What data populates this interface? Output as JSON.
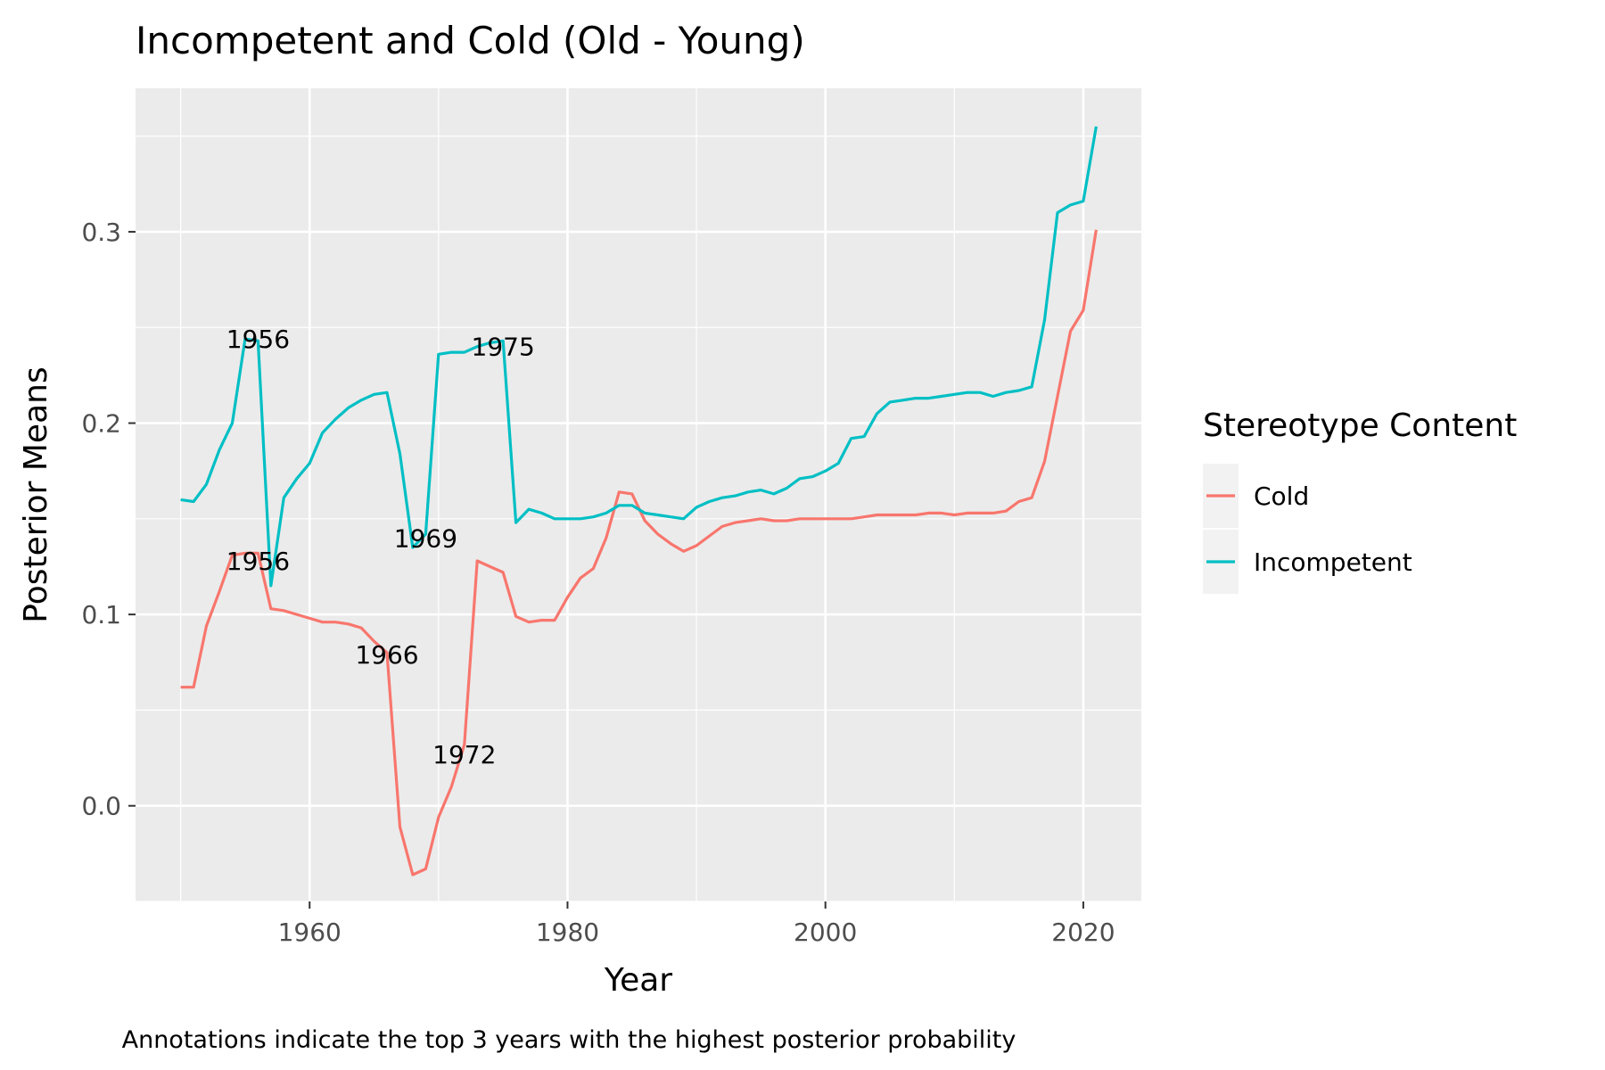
{
  "chart_data": {
    "type": "line",
    "title": "Incompetent and Cold (Old - Young)",
    "xlabel": "Year",
    "ylabel": "Posterior Means",
    "caption": "Annotations indicate the top 3 years with the highest posterior probability",
    "xlim": [
      1946.5,
      2024.5
    ],
    "ylim": [
      -0.05,
      0.375
    ],
    "x_ticks": [
      {
        "value": 1960,
        "label": "1960"
      },
      {
        "value": 1980,
        "label": "1980"
      },
      {
        "value": 2000,
        "label": "2000"
      },
      {
        "value": 2020,
        "label": "2020"
      }
    ],
    "y_ticks": [
      {
        "value": 0.0,
        "label": "0.0"
      },
      {
        "value": 0.1,
        "label": "0.1"
      },
      {
        "value": 0.2,
        "label": "0.2"
      },
      {
        "value": 0.3,
        "label": "0.3"
      }
    ],
    "grid": true,
    "legend": {
      "title": "Stereotype Content",
      "position": "right"
    },
    "x": [
      1950,
      1951,
      1952,
      1953,
      1954,
      1955,
      1956,
      1957,
      1958,
      1959,
      1960,
      1961,
      1962,
      1963,
      1964,
      1965,
      1966,
      1967,
      1968,
      1969,
      1970,
      1971,
      1972,
      1973,
      1974,
      1975,
      1976,
      1977,
      1978,
      1979,
      1980,
      1981,
      1982,
      1983,
      1984,
      1985,
      1986,
      1987,
      1988,
      1989,
      1990,
      1991,
      1992,
      1993,
      1994,
      1995,
      1996,
      1997,
      1998,
      1999,
      2000,
      2001,
      2002,
      2003,
      2004,
      2005,
      2006,
      2007,
      2008,
      2009,
      2010,
      2011,
      2012,
      2013,
      2014,
      2015,
      2016,
      2017,
      2018,
      2019,
      2020,
      2021
    ],
    "series": [
      {
        "name": "Cold",
        "color": "#F8766D",
        "values": [
          0.062,
          0.062,
          0.094,
          0.112,
          0.131,
          0.132,
          0.132,
          0.103,
          0.102,
          0.1,
          0.098,
          0.096,
          0.096,
          0.095,
          0.093,
          0.086,
          0.08,
          -0.011,
          -0.036,
          -0.033,
          -0.006,
          0.01,
          0.032,
          0.128,
          0.125,
          0.122,
          0.099,
          0.096,
          0.097,
          0.097,
          0.109,
          0.119,
          0.124,
          0.14,
          0.164,
          0.163,
          0.149,
          0.142,
          0.137,
          0.133,
          0.136,
          0.141,
          0.146,
          0.148,
          0.149,
          0.15,
          0.149,
          0.149,
          0.15,
          0.15,
          0.15,
          0.15,
          0.15,
          0.151,
          0.152,
          0.152,
          0.152,
          0.152,
          0.153,
          0.153,
          0.152,
          0.153,
          0.153,
          0.153,
          0.154,
          0.159,
          0.161,
          0.18,
          0.214,
          0.248,
          0.259,
          0.301
        ]
      },
      {
        "name": "Incompetent",
        "color": "#00BFC4",
        "values": [
          0.16,
          0.159,
          0.168,
          0.186,
          0.2,
          0.244,
          0.243,
          0.115,
          0.161,
          0.171,
          0.179,
          0.195,
          0.202,
          0.208,
          0.212,
          0.215,
          0.216,
          0.184,
          0.135,
          0.142,
          0.236,
          0.237,
          0.237,
          0.24,
          0.242,
          0.243,
          0.148,
          0.155,
          0.153,
          0.15,
          0.15,
          0.15,
          0.151,
          0.153,
          0.157,
          0.157,
          0.153,
          0.152,
          0.151,
          0.15,
          0.156,
          0.159,
          0.161,
          0.162,
          0.164,
          0.165,
          0.163,
          0.166,
          0.171,
          0.172,
          0.175,
          0.179,
          0.192,
          0.193,
          0.205,
          0.211,
          0.212,
          0.213,
          0.213,
          0.214,
          0.215,
          0.216,
          0.216,
          0.214,
          0.216,
          0.217,
          0.219,
          0.254,
          0.31,
          0.314,
          0.316,
          0.355
        ]
      }
    ],
    "annotations": [
      {
        "label": "1956",
        "x": 1956,
        "y": 0.244
      },
      {
        "label": "1975",
        "x": 1975,
        "y": 0.24
      },
      {
        "label": "1956",
        "x": 1956,
        "y": 0.128
      },
      {
        "label": "1969",
        "x": 1969,
        "y": 0.14
      },
      {
        "label": "1966",
        "x": 1966,
        "y": 0.079
      },
      {
        "label": "1972",
        "x": 1972,
        "y": 0.027
      }
    ]
  }
}
